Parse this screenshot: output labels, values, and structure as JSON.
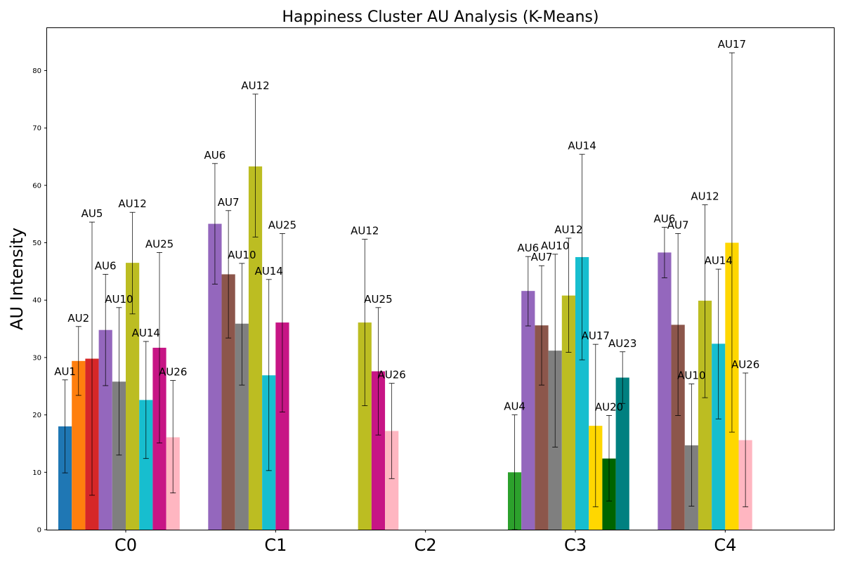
{
  "chart_data": {
    "type": "bar",
    "title": "Happiness Cluster AU Analysis (K-Means)",
    "xlabel": "",
    "ylabel": "AU Intensity",
    "ylim": [
      0,
      87.4
    ],
    "yticks": [
      0,
      10,
      20,
      30,
      40,
      50,
      60,
      70,
      80
    ],
    "grid": false,
    "au_colors": {
      "AU1": "#1f77b4",
      "AU2": "#ff7f0e",
      "AU4": "#2ca02c",
      "AU5": "#d62728",
      "AU6": "#9467bd",
      "AU7": "#8c564b",
      "AU10": "#7f7f7f",
      "AU12": "#bcbd22",
      "AU14": "#17becf",
      "AU17": "#ffd700",
      "AU20": "#006400",
      "AU23": "#008080",
      "AU25": "#c71585",
      "AU26": "#ffb6c1"
    },
    "clusters": [
      {
        "name": "C0",
        "bars": [
          {
            "au": "AU1",
            "value": 18.0,
            "err_low": 9.9,
            "err_high": 26.1
          },
          {
            "au": "AU2",
            "value": 29.4,
            "err_low": 23.4,
            "err_high": 35.4
          },
          {
            "au": "AU5",
            "value": 29.8,
            "err_low": 6.0,
            "err_high": 53.6
          },
          {
            "au": "AU6",
            "value": 34.8,
            "err_low": 25.1,
            "err_high": 44.5
          },
          {
            "au": "AU10",
            "value": 25.8,
            "err_low": 13.0,
            "err_high": 38.7
          },
          {
            "au": "AU12",
            "value": 46.5,
            "err_low": 37.6,
            "err_high": 55.3
          },
          {
            "au": "AU14",
            "value": 22.6,
            "err_low": 12.4,
            "err_high": 32.8
          },
          {
            "au": "AU25",
            "value": 31.7,
            "err_low": 15.1,
            "err_high": 48.3
          },
          {
            "au": "AU26",
            "value": 16.1,
            "err_low": 6.4,
            "err_high": 26.0
          }
        ]
      },
      {
        "name": "C1",
        "bars": [
          {
            "au": "AU6",
            "value": 53.3,
            "err_low": 42.8,
            "err_high": 63.8
          },
          {
            "au": "AU7",
            "value": 44.5,
            "err_low": 33.4,
            "err_high": 55.6
          },
          {
            "au": "AU10",
            "value": 35.9,
            "err_low": 25.2,
            "err_high": 46.4
          },
          {
            "au": "AU12",
            "value": 63.3,
            "err_low": 51.0,
            "err_high": 75.9
          },
          {
            "au": "AU14",
            "value": 26.9,
            "err_low": 10.3,
            "err_high": 43.6
          },
          {
            "au": "AU25",
            "value": 36.1,
            "err_low": 20.5,
            "err_high": 51.6
          }
        ]
      },
      {
        "name": "C2",
        "bars": [
          {
            "au": "AU12",
            "value": 36.1,
            "err_low": 21.6,
            "err_high": 50.6
          },
          {
            "au": "AU25",
            "value": 27.6,
            "err_low": 16.5,
            "err_high": 38.7
          },
          {
            "au": "AU26",
            "value": 17.2,
            "err_low": 8.9,
            "err_high": 25.5
          }
        ]
      },
      {
        "name": "C3",
        "bars": [
          {
            "au": "AU4",
            "value": 10.0,
            "err_low": 0.0,
            "err_high": 20.0
          },
          {
            "au": "AU6",
            "value": 41.6,
            "err_low": 35.5,
            "err_high": 47.6
          },
          {
            "au": "AU7",
            "value": 35.6,
            "err_low": 25.2,
            "err_high": 46.0
          },
          {
            "au": "AU10",
            "value": 31.2,
            "err_low": 14.4,
            "err_high": 48.0
          },
          {
            "au": "AU12",
            "value": 40.8,
            "err_low": 30.9,
            "err_high": 50.8
          },
          {
            "au": "AU14",
            "value": 47.5,
            "err_low": 29.6,
            "err_high": 65.4
          },
          {
            "au": "AU17",
            "value": 18.1,
            "err_low": 4.0,
            "err_high": 32.3
          },
          {
            "au": "AU20",
            "value": 12.4,
            "err_low": 5.0,
            "err_high": 19.9
          },
          {
            "au": "AU23",
            "value": 26.5,
            "err_low": 22.0,
            "err_high": 31.0
          }
        ]
      },
      {
        "name": "C4",
        "bars": [
          {
            "au": "AU6",
            "value": 48.3,
            "err_low": 43.9,
            "err_high": 52.7
          },
          {
            "au": "AU7",
            "value": 35.7,
            "err_low": 19.9,
            "err_high": 51.6
          },
          {
            "au": "AU10",
            "value": 14.7,
            "err_low": 4.1,
            "err_high": 25.4
          },
          {
            "au": "AU12",
            "value": 39.9,
            "err_low": 23.0,
            "err_high": 56.6
          },
          {
            "au": "AU14",
            "value": 32.4,
            "err_low": 19.3,
            "err_high": 45.4
          },
          {
            "au": "AU17",
            "value": 50.0,
            "err_low": 17.0,
            "err_high": 83.1
          },
          {
            "au": "AU26",
            "value": 15.6,
            "err_low": 4.0,
            "err_high": 27.3
          }
        ]
      }
    ]
  }
}
